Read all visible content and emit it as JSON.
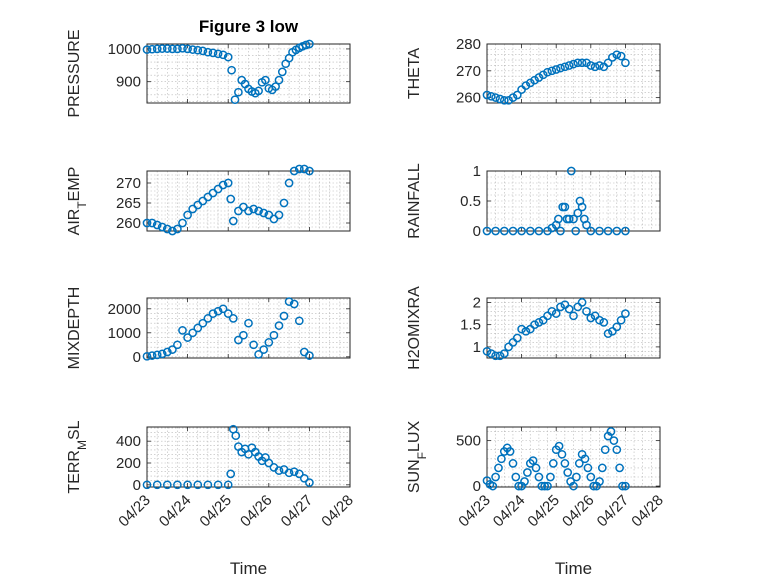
{
  "chart_data": [
    {
      "type": "scatter",
      "title": "Figure 3 low",
      "xlabel": "",
      "ylabel": "PRESSURE",
      "xlim": [
        "04/23",
        "04/28"
      ],
      "ylim": [
        835,
        1015
      ],
      "yticks": [
        900,
        1000
      ],
      "xtick_labels": [],
      "grid": true,
      "marker": "circle",
      "color": "#0072BD",
      "series": [
        {
          "x": [
            "04/23 00:00",
            "04/23 03:00",
            "04/23 06:00",
            "04/23 09:00",
            "04/23 12:00",
            "04/23 15:00",
            "04/23 18:00",
            "04/23 21:00",
            "04/24 00:00",
            "04/24 03:00",
            "04/24 06:00",
            "04/24 09:00",
            "04/24 12:00",
            "04/24 15:00",
            "04/24 18:00",
            "04/24 21:00",
            "04/25 00:00",
            "04/25 02:00",
            "04/25 04:00",
            "04/25 06:00",
            "04/25 08:00",
            "04/25 10:00",
            "04/25 12:00",
            "04/25 14:00",
            "04/25 16:00",
            "04/25 18:00",
            "04/25 20:00",
            "04/25 22:00",
            "04/26 00:00",
            "04/26 02:00",
            "04/26 04:00",
            "04/26 06:00",
            "04/26 08:00",
            "04/26 10:00",
            "04/26 12:00",
            "04/26 14:00",
            "04/26 16:00",
            "04/26 18:00",
            "04/26 20:00",
            "04/26 22:00",
            "04/27 00:00"
          ],
          "y": [
            998,
            999,
            1000,
            1001,
            1001,
            1000,
            1000,
            1002,
            1000,
            998,
            996,
            994,
            990,
            988,
            985,
            982,
            975,
            935,
            845,
            868,
            905,
            893,
            878,
            870,
            865,
            872,
            898,
            905,
            880,
            875,
            885,
            905,
            930,
            955,
            972,
            990,
            997,
            1003,
            1008,
            1012,
            1015
          ]
        }
      ]
    },
    {
      "type": "scatter",
      "title": "",
      "xlabel": "",
      "ylabel": "THETA",
      "xlim": [
        "04/23",
        "04/28"
      ],
      "ylim": [
        258,
        280
      ],
      "yticks": [
        260,
        270,
        280
      ],
      "xtick_labels": [],
      "grid": true,
      "marker": "circle",
      "color": "#0072BD",
      "series": [
        {
          "x": [
            "04/23 00:00",
            "04/23 03:00",
            "04/23 06:00",
            "04/23 09:00",
            "04/23 12:00",
            "04/23 15:00",
            "04/23 18:00",
            "04/23 21:00",
            "04/24 00:00",
            "04/24 03:00",
            "04/24 06:00",
            "04/24 09:00",
            "04/24 12:00",
            "04/24 15:00",
            "04/24 18:00",
            "04/24 21:00",
            "04/25 00:00",
            "04/25 03:00",
            "04/25 06:00",
            "04/25 09:00",
            "04/25 12:00",
            "04/25 15:00",
            "04/25 18:00",
            "04/25 21:00",
            "04/26 00:00",
            "04/26 03:00",
            "04/26 06:00",
            "04/26 09:00",
            "04/26 12:00",
            "04/26 15:00",
            "04/26 18:00",
            "04/26 21:00",
            "04/27 00:00"
          ],
          "y": [
            261,
            260.5,
            260,
            259.5,
            259,
            259,
            260,
            261,
            263,
            264.5,
            265.5,
            266.5,
            267.5,
            268.5,
            269.5,
            270,
            270.5,
            271,
            271.5,
            272,
            272.5,
            273,
            273,
            273,
            272,
            271.5,
            272,
            271.5,
            273,
            275,
            276,
            275.5,
            273
          ]
        }
      ]
    },
    {
      "type": "scatter",
      "title": "",
      "xlabel": "",
      "ylabel": "AIR_TEMP",
      "ylabel_main": "AIR",
      "ylabel_sub": "T",
      "ylabel_rest": "EMP",
      "xlim": [
        "04/23",
        "04/28"
      ],
      "ylim": [
        258,
        273
      ],
      "yticks": [
        260,
        265,
        270
      ],
      "xtick_labels": [],
      "grid": true,
      "marker": "circle",
      "color": "#0072BD",
      "series": [
        {
          "x": [
            "04/23 00:00",
            "04/23 03:00",
            "04/23 06:00",
            "04/23 09:00",
            "04/23 12:00",
            "04/23 15:00",
            "04/23 18:00",
            "04/23 21:00",
            "04/24 00:00",
            "04/24 03:00",
            "04/24 06:00",
            "04/24 09:00",
            "04/24 12:00",
            "04/24 15:00",
            "04/24 18:00",
            "04/24 21:00",
            "04/25 00:00",
            "04/25 01:30",
            "04/25 03:00",
            "04/25 06:00",
            "04/25 09:00",
            "04/25 12:00",
            "04/25 15:00",
            "04/25 18:00",
            "04/25 21:00",
            "04/26 00:00",
            "04/26 03:00",
            "04/26 06:00",
            "04/26 09:00",
            "04/26 12:00",
            "04/26 15:00",
            "04/26 18:00",
            "04/26 21:00",
            "04/27 00:00"
          ],
          "y": [
            260,
            260,
            259.5,
            259,
            258.5,
            258,
            258.5,
            260,
            262,
            263.5,
            264.5,
            265.5,
            266.5,
            267.5,
            268.5,
            269.5,
            270,
            266,
            260.5,
            263,
            264,
            263,
            263.5,
            263,
            262.5,
            262,
            261,
            262,
            265,
            270,
            273,
            273.5,
            273.5,
            273
          ]
        }
      ]
    },
    {
      "type": "scatter",
      "title": "",
      "xlabel": "",
      "ylabel": "RAINFALL",
      "xlim": [
        "04/23",
        "04/28"
      ],
      "ylim": [
        0,
        1
      ],
      "yticks": [
        0,
        0.5,
        1
      ],
      "xtick_labels": [],
      "grid": true,
      "marker": "circle",
      "color": "#0072BD",
      "series": [
        {
          "x": [
            "04/23 00:00",
            "04/23 06:00",
            "04/23 12:00",
            "04/23 18:00",
            "04/24 00:00",
            "04/24 06:00",
            "04/24 12:00",
            "04/24 18:00",
            "04/24 21:00",
            "04/25 00:00",
            "04/25 01:30",
            "04/25 03:00",
            "04/25 04:30",
            "04/25 06:00",
            "04/25 07:30",
            "04/25 09:00",
            "04/25 10:30",
            "04/25 12:00",
            "04/25 13:30",
            "04/25 15:00",
            "04/25 16:30",
            "04/25 18:00",
            "04/25 19:30",
            "04/25 21:00",
            "04/26 00:00",
            "04/26 06:00",
            "04/26 12:00",
            "04/26 18:00",
            "04/27 00:00"
          ],
          "y": [
            0,
            0,
            0,
            0,
            0,
            0,
            0,
            0,
            0.05,
            0.1,
            0.2,
            0,
            0.4,
            0.4,
            0.2,
            0.2,
            1,
            0.2,
            0,
            0.3,
            0.5,
            0.4,
            0.2,
            0.1,
            0,
            0,
            0,
            0,
            0
          ]
        }
      ]
    },
    {
      "type": "scatter",
      "title": "",
      "xlabel": "",
      "ylabel": "MIXDEPTH",
      "xlim": [
        "04/23",
        "04/28"
      ],
      "ylim": [
        -50,
        2450
      ],
      "yticks": [
        0,
        1000,
        2000
      ],
      "xtick_labels": [],
      "grid": true,
      "marker": "circle",
      "color": "#0072BD",
      "series": [
        {
          "x": [
            "04/23 00:00",
            "04/23 03:00",
            "04/23 06:00",
            "04/23 09:00",
            "04/23 12:00",
            "04/23 15:00",
            "04/23 18:00",
            "04/23 21:00",
            "04/24 00:00",
            "04/24 03:00",
            "04/24 06:00",
            "04/24 09:00",
            "04/24 12:00",
            "04/24 15:00",
            "04/24 18:00",
            "04/24 21:00",
            "04/25 00:00",
            "04/25 03:00",
            "04/25 06:00",
            "04/25 09:00",
            "04/25 12:00",
            "04/25 15:00",
            "04/25 18:00",
            "04/25 21:00",
            "04/26 00:00",
            "04/26 03:00",
            "04/26 06:00",
            "04/26 09:00",
            "04/26 12:00",
            "04/26 15:00",
            "04/26 18:00",
            "04/26 21:00",
            "04/27 00:00"
          ],
          "y": [
            20,
            50,
            80,
            120,
            200,
            300,
            500,
            1100,
            800,
            1000,
            1200,
            1400,
            1600,
            1800,
            1900,
            2000,
            1800,
            1600,
            700,
            900,
            1400,
            500,
            100,
            300,
            600,
            900,
            1300,
            1700,
            2300,
            2200,
            1500,
            200,
            50
          ]
        }
      ]
    },
    {
      "type": "scatter",
      "title": "",
      "xlabel": "",
      "ylabel": "H2OMIXRA",
      "xlim": [
        "04/23",
        "04/28"
      ],
      "ylim": [
        0.75,
        2.1
      ],
      "yticks": [
        1,
        1.5,
        2
      ],
      "xtick_labels": [],
      "grid": true,
      "marker": "circle",
      "color": "#0072BD",
      "series": [
        {
          "x": [
            "04/23 00:00",
            "04/23 03:00",
            "04/23 06:00",
            "04/23 09:00",
            "04/23 12:00",
            "04/23 15:00",
            "04/23 18:00",
            "04/23 21:00",
            "04/24 00:00",
            "04/24 03:00",
            "04/24 06:00",
            "04/24 09:00",
            "04/24 12:00",
            "04/24 15:00",
            "04/24 18:00",
            "04/24 21:00",
            "04/25 00:00",
            "04/25 03:00",
            "04/25 06:00",
            "04/25 09:00",
            "04/25 12:00",
            "04/25 15:00",
            "04/25 18:00",
            "04/25 21:00",
            "04/26 00:00",
            "04/26 03:00",
            "04/26 06:00",
            "04/26 09:00",
            "04/26 12:00",
            "04/26 15:00",
            "04/26 18:00",
            "04/26 21:00",
            "04/27 00:00"
          ],
          "y": [
            0.9,
            0.85,
            0.8,
            0.8,
            0.85,
            1.0,
            1.1,
            1.2,
            1.4,
            1.35,
            1.4,
            1.5,
            1.55,
            1.6,
            1.7,
            1.8,
            1.75,
            1.9,
            1.95,
            1.85,
            1.7,
            1.9,
            2.0,
            1.8,
            1.65,
            1.7,
            1.6,
            1.55,
            1.3,
            1.35,
            1.45,
            1.6,
            1.75
          ]
        }
      ]
    },
    {
      "type": "scatter",
      "title": "",
      "xlabel": "Time",
      "ylabel": "TERR_MSL",
      "ylabel_main": "TERR",
      "ylabel_sub": "M",
      "ylabel_rest": "SL",
      "xlim": [
        "04/23",
        "04/28"
      ],
      "ylim": [
        -20,
        530
      ],
      "yticks": [
        0,
        200,
        400
      ],
      "xtick_labels": [
        "04/23",
        "04/24",
        "04/25",
        "04/26",
        "04/27",
        "04/28"
      ],
      "grid": true,
      "marker": "circle",
      "color": "#0072BD",
      "series": [
        {
          "x": [
            "04/23 00:00",
            "04/23 06:00",
            "04/23 12:00",
            "04/23 18:00",
            "04/24 00:00",
            "04/24 06:00",
            "04/24 12:00",
            "04/24 18:00",
            "04/25 00:00",
            "04/25 01:30",
            "04/25 03:00",
            "04/25 04:30",
            "04/25 06:00",
            "04/25 08:00",
            "04/25 10:00",
            "04/25 12:00",
            "04/25 14:00",
            "04/25 16:00",
            "04/25 18:00",
            "04/25 20:00",
            "04/25 22:00",
            "04/26 00:00",
            "04/26 03:00",
            "04/26 06:00",
            "04/26 09:00",
            "04/26 12:00",
            "04/26 15:00",
            "04/26 18:00",
            "04/26 21:00",
            "04/27 00:00"
          ],
          "y": [
            0,
            0,
            0,
            0,
            0,
            0,
            0,
            0,
            0,
            100,
            510,
            450,
            350,
            300,
            330,
            280,
            340,
            300,
            260,
            220,
            250,
            200,
            160,
            130,
            140,
            110,
            120,
            100,
            60,
            20
          ]
        }
      ]
    },
    {
      "type": "scatter",
      "title": "",
      "xlabel": "Time",
      "ylabel": "SUN_FLUX",
      "ylabel_main": "SUN",
      "ylabel_sub": "F",
      "ylabel_rest": "LUX",
      "xlim": [
        "04/23",
        "04/28"
      ],
      "ylim": [
        -10,
        650
      ],
      "yticks": [
        0,
        500
      ],
      "xtick_labels": [
        "04/23",
        "04/24",
        "04/25",
        "04/26",
        "04/27",
        "04/28"
      ],
      "grid": true,
      "marker": "circle",
      "color": "#0072BD",
      "series": [
        {
          "x": [
            "04/23 00:00",
            "04/23 02:00",
            "04/23 04:00",
            "04/23 06:00",
            "04/23 08:00",
            "04/23 10:00",
            "04/23 12:00",
            "04/23 14:00",
            "04/23 16:00",
            "04/23 18:00",
            "04/23 20:00",
            "04/23 22:00",
            "04/24 00:00",
            "04/24 02:00",
            "04/24 04:00",
            "04/24 06:00",
            "04/24 08:00",
            "04/24 10:00",
            "04/24 12:00",
            "04/24 14:00",
            "04/24 16:00",
            "04/24 18:00",
            "04/24 20:00",
            "04/24 22:00",
            "04/25 00:00",
            "04/25 02:00",
            "04/25 04:00",
            "04/25 06:00",
            "04/25 08:00",
            "04/25 10:00",
            "04/25 12:00",
            "04/25 14:00",
            "04/25 16:00",
            "04/25 18:00",
            "04/25 20:00",
            "04/25 22:00",
            "04/26 00:00",
            "04/26 02:00",
            "04/26 04:00",
            "04/26 06:00",
            "04/26 08:00",
            "04/26 10:00",
            "04/26 12:00",
            "04/26 14:00",
            "04/26 16:00",
            "04/26 18:00",
            "04/26 20:00",
            "04/26 22:00",
            "04/27 00:00"
          ],
          "y": [
            60,
            20,
            0,
            100,
            200,
            300,
            380,
            420,
            380,
            250,
            100,
            0,
            0,
            50,
            150,
            250,
            280,
            200,
            100,
            0,
            0,
            0,
            100,
            250,
            400,
            440,
            350,
            250,
            150,
            50,
            0,
            100,
            250,
            350,
            300,
            200,
            100,
            0,
            0,
            50,
            200,
            400,
            550,
            600,
            500,
            400,
            200,
            0,
            0
          ]
        }
      ]
    }
  ]
}
